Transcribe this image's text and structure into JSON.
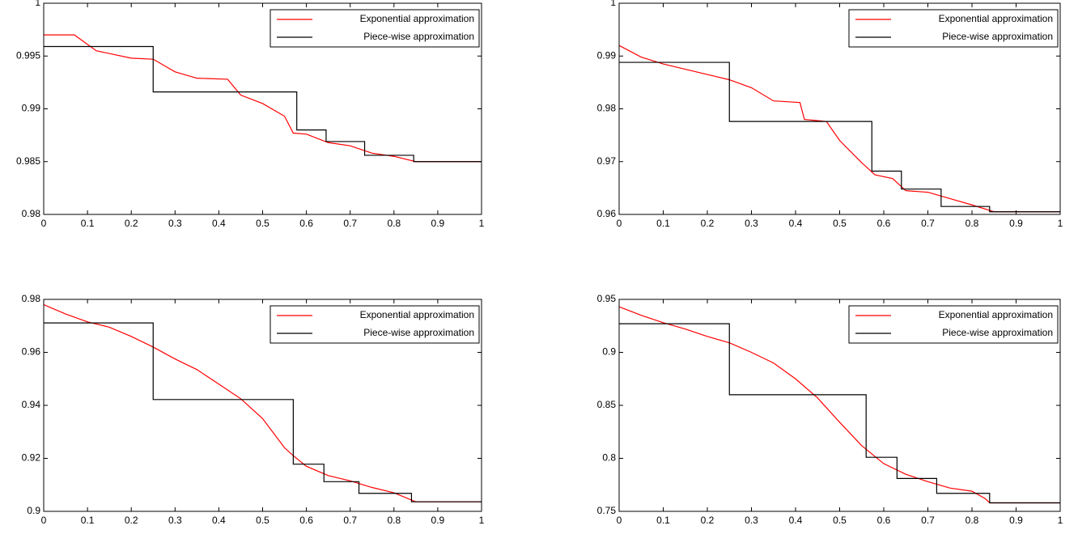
{
  "chart_data": [
    {
      "type": "line",
      "legend": "upper right",
      "xlim": [
        0,
        1
      ],
      "xticks": [
        0,
        0.1,
        0.2,
        0.3,
        0.4,
        0.5,
        0.6,
        0.7,
        0.8,
        0.9,
        1
      ],
      "ylim": [
        0.98,
        1
      ],
      "yticks": [
        0.98,
        0.985,
        0.99,
        0.995,
        1
      ],
      "series": [
        {
          "name": "Exponential approximation",
          "color": "#ff0000",
          "x": [
            0,
            0.07,
            0.12,
            0.2,
            0.25,
            0.3,
            0.35,
            0.42,
            0.45,
            0.5,
            0.55,
            0.57,
            0.6,
            0.65,
            0.7,
            0.75,
            0.8,
            0.85,
            1
          ],
          "values": [
            0.997,
            0.997,
            0.9955,
            0.9948,
            0.9947,
            0.9935,
            0.9929,
            0.9928,
            0.9913,
            0.9905,
            0.9893,
            0.9877,
            0.9876,
            0.9868,
            0.9865,
            0.9858,
            0.9855,
            0.985,
            0.985
          ]
        },
        {
          "name": "Piece-wise approximation",
          "color": "#000000",
          "x": [
            0,
            0.25,
            0.25,
            0.578,
            0.578,
            0.645,
            0.645,
            0.733,
            0.733,
            0.845,
            0.845,
            1
          ],
          "values": [
            0.9959,
            0.9959,
            0.9916,
            0.9916,
            0.988,
            0.988,
            0.9869,
            0.9869,
            0.9856,
            0.9856,
            0.985,
            0.985
          ]
        }
      ]
    },
    {
      "type": "line",
      "legend": "upper right",
      "xlim": [
        0,
        1
      ],
      "xticks": [
        0,
        0.1,
        0.2,
        0.3,
        0.4,
        0.5,
        0.6,
        0.7,
        0.8,
        0.9,
        1
      ],
      "ylim": [
        0.96,
        1
      ],
      "yticks": [
        0.96,
        0.97,
        0.98,
        0.99,
        1
      ],
      "series": [
        {
          "name": "Exponential approximation",
          "color": "#ff0000",
          "x": [
            0,
            0.05,
            0.1,
            0.2,
            0.25,
            0.3,
            0.35,
            0.41,
            0.42,
            0.47,
            0.5,
            0.55,
            0.58,
            0.62,
            0.65,
            0.7,
            0.75,
            0.8,
            0.85,
            1
          ],
          "values": [
            0.992,
            0.9898,
            0.9885,
            0.9865,
            0.9855,
            0.984,
            0.9815,
            0.9812,
            0.978,
            0.9776,
            0.974,
            0.9698,
            0.9675,
            0.9668,
            0.9645,
            0.9642,
            0.963,
            0.9618,
            0.9605,
            0.9605
          ]
        },
        {
          "name": "Piece-wise approximation",
          "color": "#000000",
          "x": [
            0,
            0.25,
            0.25,
            0.573,
            0.573,
            0.64,
            0.64,
            0.73,
            0.73,
            0.84,
            0.84,
            1
          ],
          "values": [
            0.9888,
            0.9888,
            0.9776,
            0.9776,
            0.9682,
            0.9682,
            0.9648,
            0.9648,
            0.9615,
            0.9615,
            0.9605,
            0.9605
          ]
        }
      ]
    },
    {
      "type": "line",
      "legend": "upper right",
      "xlim": [
        0,
        1
      ],
      "xticks": [
        0,
        0.1,
        0.2,
        0.3,
        0.4,
        0.5,
        0.6,
        0.7,
        0.8,
        0.9,
        1
      ],
      "ylim": [
        0.9,
        0.98
      ],
      "yticks": [
        0.9,
        0.92,
        0.94,
        0.96,
        0.98
      ],
      "series": [
        {
          "name": "Exponential approximation",
          "color": "#ff0000",
          "x": [
            0,
            0.05,
            0.1,
            0.15,
            0.2,
            0.25,
            0.3,
            0.35,
            0.4,
            0.45,
            0.5,
            0.55,
            0.57,
            0.6,
            0.65,
            0.7,
            0.75,
            0.8,
            0.85,
            1
          ],
          "values": [
            0.978,
            0.9745,
            0.9715,
            0.9695,
            0.966,
            0.962,
            0.9575,
            0.9535,
            0.948,
            0.9425,
            0.935,
            0.924,
            0.921,
            0.917,
            0.9135,
            0.9115,
            0.909,
            0.907,
            0.9036,
            0.9036
          ]
        },
        {
          "name": "Piece-wise approximation",
          "color": "#000000",
          "x": [
            0,
            0.25,
            0.25,
            0.57,
            0.57,
            0.64,
            0.64,
            0.72,
            0.72,
            0.84,
            0.84,
            1
          ],
          "values": [
            0.9711,
            0.9711,
            0.9422,
            0.9422,
            0.9178,
            0.9178,
            0.9112,
            0.9112,
            0.9068,
            0.9068,
            0.9036,
            0.9036
          ]
        }
      ]
    },
    {
      "type": "line",
      "legend": "upper right",
      "xlim": [
        0,
        1
      ],
      "xticks": [
        0,
        0.1,
        0.2,
        0.3,
        0.4,
        0.5,
        0.6,
        0.7,
        0.8,
        0.9,
        1
      ],
      "ylim": [
        0.75,
        0.95
      ],
      "yticks": [
        0.75,
        0.8,
        0.85,
        0.9,
        0.95
      ],
      "series": [
        {
          "name": "Exponential approximation",
          "color": "#ff0000",
          "x": [
            0,
            0.05,
            0.1,
            0.15,
            0.2,
            0.25,
            0.3,
            0.35,
            0.4,
            0.45,
            0.5,
            0.55,
            0.6,
            0.65,
            0.7,
            0.75,
            0.8,
            0.83,
            0.84,
            1
          ],
          "values": [
            0.943,
            0.935,
            0.928,
            0.922,
            0.915,
            0.909,
            0.9,
            0.89,
            0.875,
            0.857,
            0.834,
            0.812,
            0.795,
            0.785,
            0.778,
            0.772,
            0.769,
            0.762,
            0.758,
            0.758
          ]
        },
        {
          "name": "Piece-wise approximation",
          "color": "#000000",
          "x": [
            0,
            0.25,
            0.25,
            0.56,
            0.56,
            0.63,
            0.63,
            0.72,
            0.72,
            0.84,
            0.84,
            1
          ],
          "values": [
            0.927,
            0.927,
            0.86,
            0.86,
            0.801,
            0.801,
            0.781,
            0.781,
            0.767,
            0.767,
            0.758,
            0.758
          ]
        }
      ]
    }
  ]
}
